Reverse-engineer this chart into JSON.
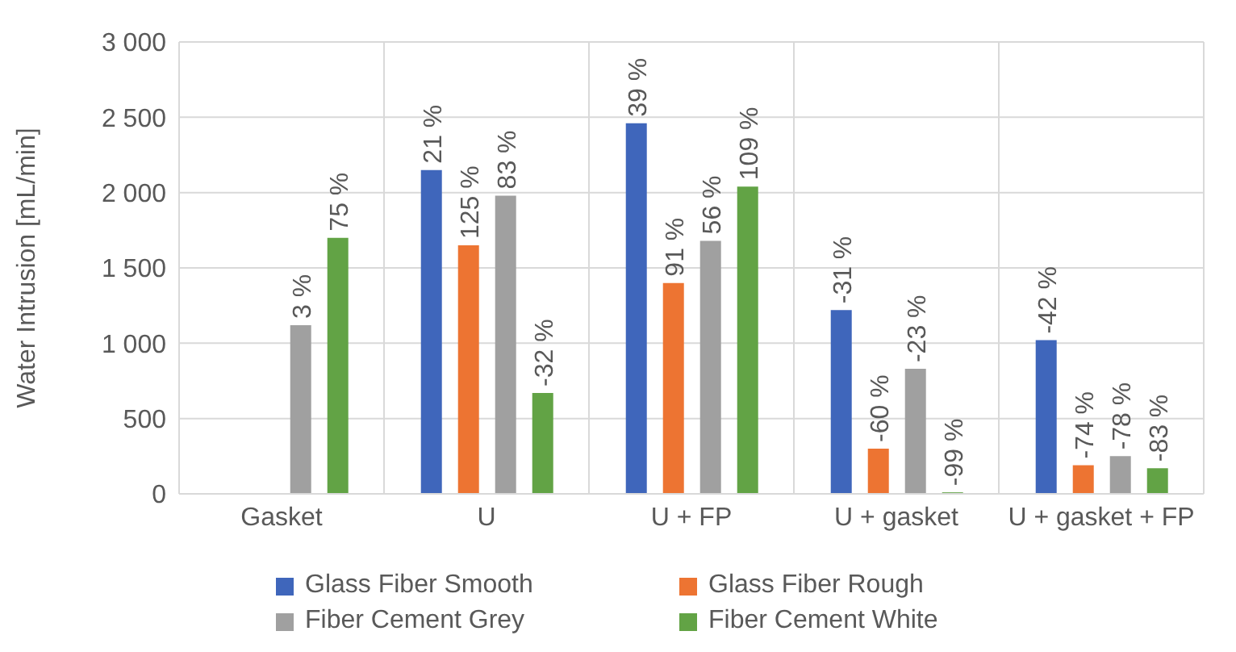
{
  "chart_data": {
    "type": "bar",
    "ylabel": "Water Intrusion [mL/min]",
    "categories": [
      "Gasket",
      "U",
      "U + FP",
      "U + gasket",
      "U + gasket + FP"
    ],
    "series": [
      {
        "name": "Glass Fiber Smooth",
        "color": "#3f66bb",
        "values": [
          null,
          2150,
          2460,
          1220,
          1020
        ]
      },
      {
        "name": "Glass Fiber Rough",
        "color": "#ed7432",
        "values": [
          null,
          1650,
          1400,
          300,
          190
        ]
      },
      {
        "name": "Fiber Cement Grey",
        "color": "#a0a0a0",
        "values": [
          1120,
          1980,
          1680,
          830,
          250
        ]
      },
      {
        "name": "Fiber Cement White",
        "color": "#62a345",
        "values": [
          1700,
          670,
          2040,
          10,
          170
        ]
      }
    ],
    "annotations": [
      "3 %",
      "75 %",
      "21 %",
      "125 %",
      "83 %",
      "-32 %",
      "39 %",
      "91 %",
      "56 %",
      "109 %",
      "-31 %",
      "-60 %",
      "-23 %",
      "-99 %",
      "-42 %",
      "-74 %",
      "-78 %",
      "-83 %"
    ],
    "ylim": [
      0,
      3000
    ],
    "yticks": [
      {
        "value": 0,
        "label": "0"
      },
      {
        "value": 500,
        "label": "500"
      },
      {
        "value": 1000,
        "label": "1 000"
      },
      {
        "value": 1500,
        "label": "1 500"
      },
      {
        "value": 2000,
        "label": "2 000"
      },
      {
        "value": 2500,
        "label": "2 500"
      },
      {
        "value": 3000,
        "label": "3 000"
      }
    ],
    "grid": true,
    "legend": "bottom"
  }
}
